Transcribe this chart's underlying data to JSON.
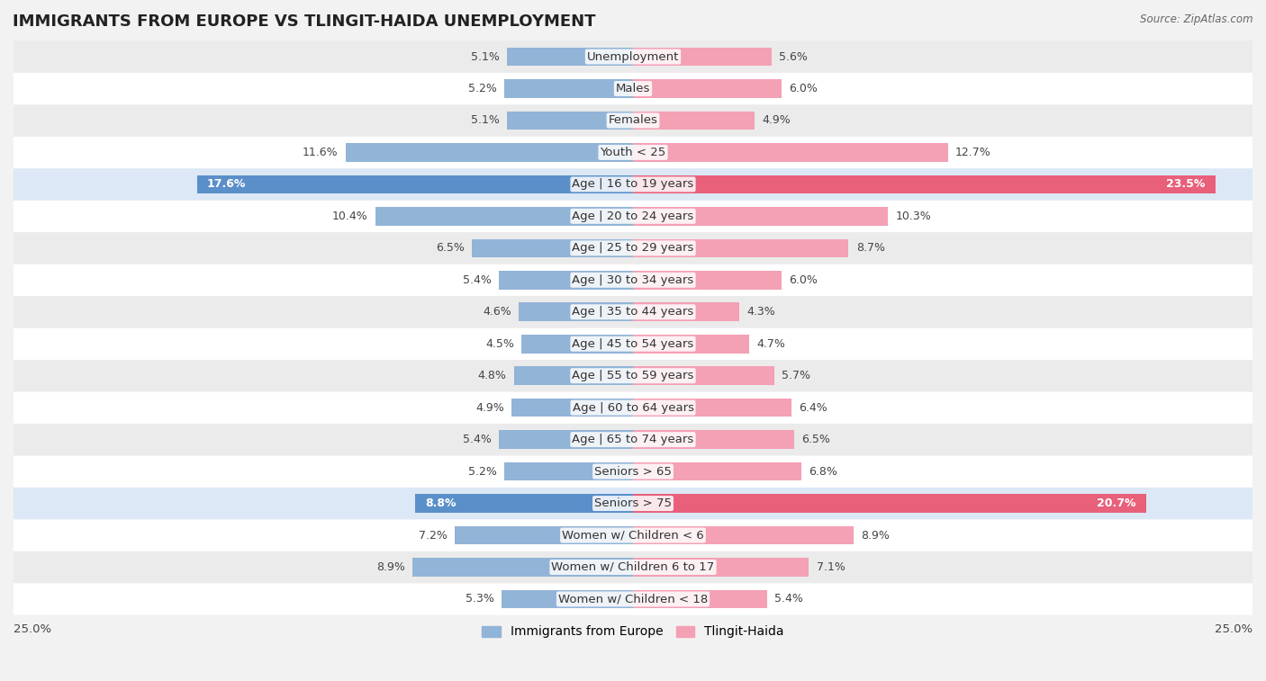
{
  "title": "IMMIGRANTS FROM EUROPE VS TLINGIT-HAIDA UNEMPLOYMENT",
  "source": "Source: ZipAtlas.com",
  "categories": [
    "Unemployment",
    "Males",
    "Females",
    "Youth < 25",
    "Age | 16 to 19 years",
    "Age | 20 to 24 years",
    "Age | 25 to 29 years",
    "Age | 30 to 34 years",
    "Age | 35 to 44 years",
    "Age | 45 to 54 years",
    "Age | 55 to 59 years",
    "Age | 60 to 64 years",
    "Age | 65 to 74 years",
    "Seniors > 65",
    "Seniors > 75",
    "Women w/ Children < 6",
    "Women w/ Children 6 to 17",
    "Women w/ Children < 18"
  ],
  "left_values": [
    5.1,
    5.2,
    5.1,
    11.6,
    17.6,
    10.4,
    6.5,
    5.4,
    4.6,
    4.5,
    4.8,
    4.9,
    5.4,
    5.2,
    8.8,
    7.2,
    8.9,
    5.3
  ],
  "right_values": [
    5.6,
    6.0,
    4.9,
    12.7,
    23.5,
    10.3,
    8.7,
    6.0,
    4.3,
    4.7,
    5.7,
    6.4,
    6.5,
    6.8,
    20.7,
    8.9,
    7.1,
    5.4
  ],
  "left_color": "#92b4d7",
  "right_color": "#f4a0b5",
  "highlight_left_color": "#5b8fc9",
  "highlight_right_color": "#e8607a",
  "highlight_rows": [
    4,
    14
  ],
  "bg_color": "#f2f2f2",
  "row_colors": [
    "#ffffff",
    "#ebebeb"
  ],
  "highlight_row_color": "#dce8f5",
  "max_value": 25.0,
  "legend_left": "Immigrants from Europe",
  "legend_right": "Tlingit-Haida",
  "title_fontsize": 13,
  "label_fontsize": 9.5,
  "value_fontsize": 9.0
}
